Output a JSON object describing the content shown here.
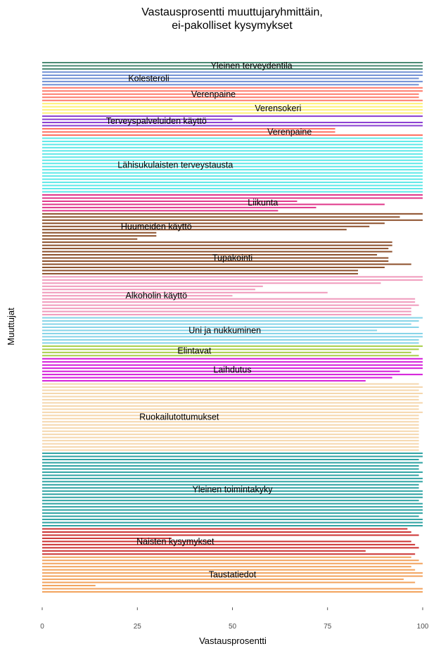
{
  "chart_data": {
    "type": "bar",
    "orientation": "horizontal",
    "title": "Vastausprosentti muuttujaryhmittäin,",
    "subtitle": "ei-pakolliset kysymykset",
    "xlabel": "Vastausprosentti",
    "ylabel": "Muuttujat",
    "xlim": [
      0,
      100
    ],
    "xticks": [
      "0",
      "25",
      "50",
      "75",
      "100"
    ],
    "grid": false,
    "legend": "none",
    "groups": [
      {
        "name": "Yleinen terveydentila",
        "color": "#4a8a73",
        "values": [
          100,
          100,
          100
        ]
      },
      {
        "name": "Kolesteroli",
        "color": "#6f8fd4",
        "values": [
          100,
          100,
          99,
          100,
          99
        ]
      },
      {
        "name": "Verenpaine",
        "color": "#ff7b6b",
        "values": [
          100,
          100,
          99,
          99,
          100
        ]
      },
      {
        "name": "Verensokeri",
        "color": "#fff176",
        "values": [
          100,
          100,
          100,
          100
        ]
      },
      {
        "name": "Terveyspalveluiden käyttö",
        "color": "#8a3fd1",
        "values": [
          100,
          50,
          100,
          100
        ]
      },
      {
        "name": "Verenpaine",
        "color": "#ff6f61",
        "values": [
          77,
          77,
          100
        ]
      },
      {
        "name": "Lähisukulaisten terveystausta",
        "color": "#5ee8e8",
        "values": [
          100,
          100,
          100,
          100,
          100,
          100,
          100,
          100,
          100,
          100,
          100,
          100,
          100,
          100,
          100,
          100,
          100,
          100
        ]
      },
      {
        "name": "Liikunta",
        "color": "#e0378a",
        "values": [
          100,
          100,
          67,
          90,
          72,
          62
        ]
      },
      {
        "name": "Huumeiden käyttö",
        "color": "#8c4f2b",
        "values": [
          100,
          94,
          100,
          90,
          86,
          80,
          30,
          30,
          25
        ]
      },
      {
        "name": "Tupakointi",
        "color": "#8c4f2b",
        "values": [
          92,
          92,
          91,
          92,
          88,
          91,
          91,
          97,
          90,
          83,
          83
        ]
      },
      {
        "name": "Alkoholin käyttö",
        "color": "#f09abc",
        "values": [
          100,
          100,
          89,
          58,
          56,
          75,
          50,
          98,
          98,
          99,
          97,
          97,
          97
        ]
      },
      {
        "name": "Uni ja nukkuminen",
        "color": "#86d4e8",
        "values": [
          100,
          99,
          97,
          99,
          88,
          100,
          100,
          99,
          99
        ]
      },
      {
        "name": "Elintavat",
        "color": "#a8cf4a",
        "values": [
          100,
          99,
          97,
          99
        ]
      },
      {
        "name": "Laihdutus",
        "color": "#d41cd9",
        "values": [
          100,
          100,
          100,
          100,
          94,
          100,
          92,
          85
        ]
      },
      {
        "name": "Ruokailutottumukset",
        "color": "#f5d7ae",
        "values": [
          99,
          100,
          99,
          100,
          99,
          99,
          100,
          99,
          99,
          100,
          99,
          99,
          99,
          99,
          99,
          99,
          99,
          99,
          99,
          99,
          99,
          99
        ]
      },
      {
        "name": "Yleinen toimintakyky",
        "color": "#2fa3a3",
        "values": [
          100,
          100,
          99,
          100,
          99,
          99,
          100,
          99,
          100,
          100,
          99,
          99,
          100,
          100,
          100,
          99,
          100,
          100,
          100,
          100,
          99,
          100,
          100,
          100
        ]
      },
      {
        "name": "Naisten kysymykset",
        "color": "#cc3333",
        "values": [
          96,
          97,
          99,
          34,
          97,
          98,
          99,
          85,
          98
        ]
      },
      {
        "name": "Taustatiedot",
        "color": "#f2a35e",
        "values": [
          97,
          99,
          100,
          97,
          98,
          100,
          100,
          95,
          98,
          14,
          100,
          100
        ]
      }
    ]
  }
}
